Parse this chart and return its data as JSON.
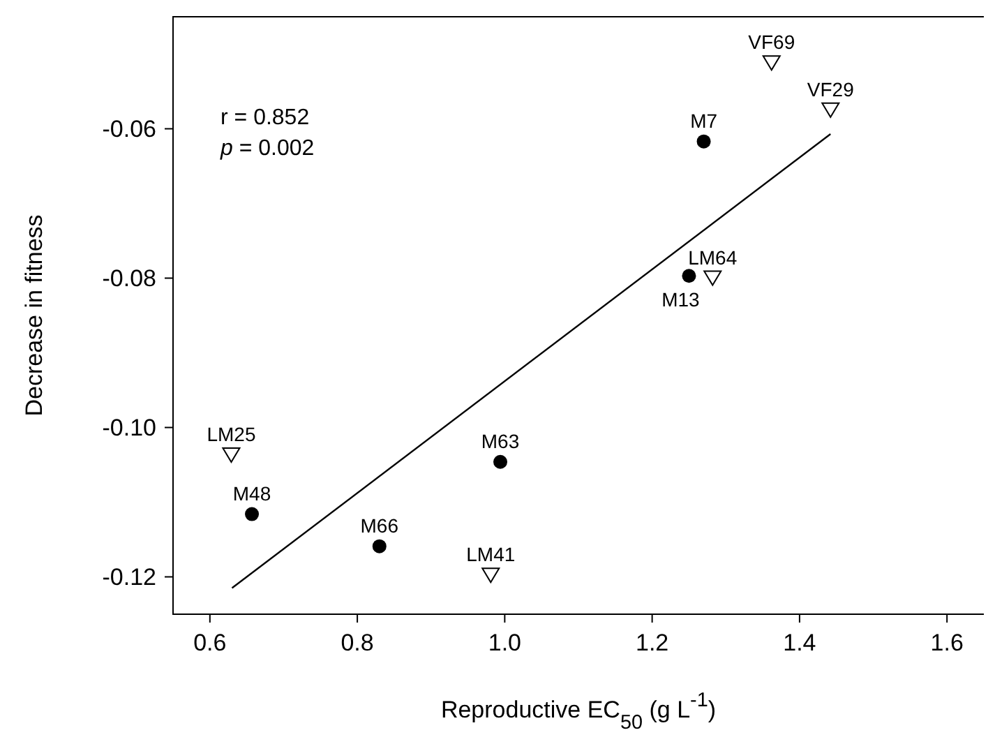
{
  "chart_data": {
    "type": "scatter",
    "xlabel": "Reproductive EC$_{50}$ (g L$^{-1}$)",
    "ylabel": "Decrease in fitness",
    "xlim": [
      0.55,
      1.65
    ],
    "xticks": [
      0.6,
      0.8,
      {
        "value": 1,
        "label": "1.0"
      },
      1.2,
      1.4,
      1.6
    ],
    "ylim": [
      -0.125,
      -0.045
    ],
    "yticks": [
      -0.06,
      -0.08,
      {
        "value": -0.1,
        "label": "-0.10"
      },
      -0.12
    ],
    "grid": false,
    "series": [
      {
        "marker": "circle",
        "color": "#000000",
        "x": [
          1.27,
          1.25,
          0.657,
          0.83,
          0.994
        ],
        "values": [
          -0.0617,
          -0.0797,
          -0.1116,
          -0.1159,
          -0.1046
        ]
      },
      {
        "marker": "triangle",
        "color": "#000000",
        "x": [
          1.362,
          1.442,
          1.282,
          0.629,
          0.981
        ],
        "values": [
          -0.0512,
          -0.0575,
          -0.08,
          -0.1037,
          -0.1198
        ]
      },
      {
        "type": "line",
        "marker": "none",
        "line_style": "solid",
        "color": "#000000",
        "x": [
          0.63,
          1.442
        ],
        "values": [
          -0.1215,
          -0.0607
        ]
      }
    ],
    "annotations": [
      "r = 0.852",
      "p = 0.002",
      {
        "text": "M7",
        "x": 1.27,
        "y": -0.0617
      },
      {
        "text": "M13",
        "x": 1.25,
        "y": -0.0797
      },
      {
        "text": "M48",
        "x": 0.657,
        "y": -0.1116
      },
      {
        "text": "M66",
        "x": 0.83,
        "y": -0.1159
      },
      {
        "text": "M63",
        "x": 0.994,
        "y": -0.1046
      },
      {
        "text": "VF69",
        "x": 1.362,
        "y": -0.0512
      },
      {
        "text": "VF29",
        "x": 1.442,
        "y": -0.0575
      },
      {
        "text": "LM64",
        "x": 1.282,
        "y": -0.08
      },
      {
        "text": "LM25",
        "x": 0.629,
        "y": -0.1037
      },
      {
        "text": "LM41",
        "x": 0.981,
        "y": -0.1198
      }
    ]
  }
}
